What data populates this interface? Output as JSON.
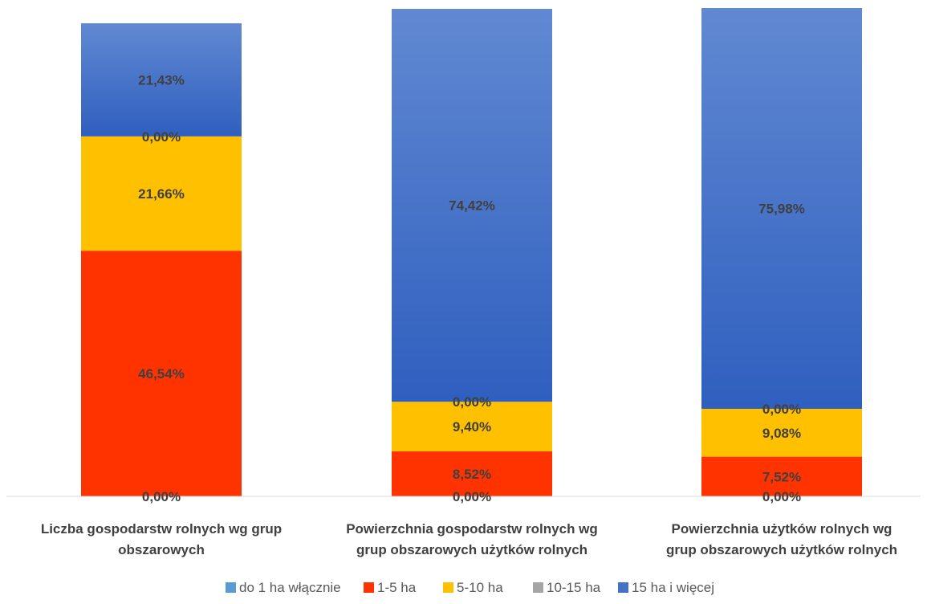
{
  "chart_data": {
    "type": "bar",
    "stacked": true,
    "categories": [
      "Liczba gospodarstw rolnych wg grup obszarowych",
      "Powierzchnia gospodarstw rolnych wg grup obszarowych użytków rolnych",
      "Powierzchnia użytków rolnych wg grup obszarowych użytków rolnych"
    ],
    "category_lines": [
      [
        "Liczba gospodarstw rolnych wg grup",
        "obszarowych"
      ],
      [
        "Powierzchnia gospodarstw rolnych wg",
        "grup obszarowych użytków rolnych"
      ],
      [
        "Powierzchnia użytków rolnych wg",
        "grup obszarowych użytków rolnych"
      ]
    ],
    "series": [
      {
        "name": "do 1 ha włącznie",
        "color": "#5b9bd5",
        "values": [
          0.0,
          0.0,
          0.0
        ],
        "labels": [
          "0,00%",
          "0,00%",
          "0,00%"
        ]
      },
      {
        "name": "1-5 ha",
        "color": "#ff3300",
        "values": [
          46.54,
          8.52,
          7.52
        ],
        "labels": [
          "46,54%",
          "8,52%",
          "7,52%"
        ]
      },
      {
        "name": "5-10 ha",
        "color": "#ffc000",
        "values": [
          21.66,
          9.4,
          9.08
        ],
        "labels": [
          "21,66%",
          "9,40%",
          "9,08%"
        ]
      },
      {
        "name": "10-15 ha",
        "color": "#a5a5a5",
        "values": [
          0.0,
          0.0,
          0.0
        ],
        "labels": [
          "0,00%",
          "0,00%",
          "0,00%"
        ]
      },
      {
        "name": "15 ha i więcej",
        "color": "#4472c4",
        "values": [
          21.43,
          74.42,
          75.98
        ],
        "labels": [
          "21,43%",
          "74,42%",
          "75,98%"
        ]
      }
    ],
    "legend_position": "bottom",
    "grid": false
  }
}
